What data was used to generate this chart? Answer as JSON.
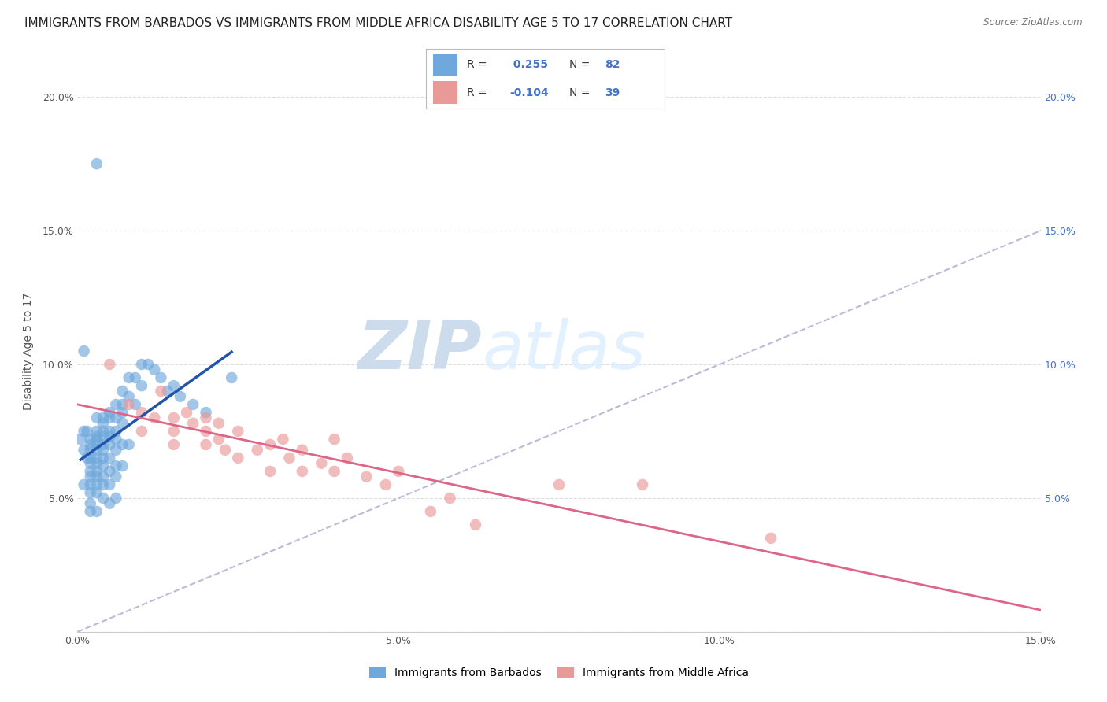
{
  "title": "IMMIGRANTS FROM BARBADOS VS IMMIGRANTS FROM MIDDLE AFRICA DISABILITY AGE 5 TO 17 CORRELATION CHART",
  "source": "Source: ZipAtlas.com",
  "ylabel": "Disability Age 5 to 17",
  "xlim": [
    0.0,
    0.15
  ],
  "ylim": [
    0.0,
    0.21
  ],
  "background_color": "#ffffff",
  "watermark_zip": "ZIP",
  "watermark_atlas": "atlas",
  "watermark_color": "#ccdcec",
  "barbados_color": "#6fa8dc",
  "middle_africa_color": "#ea9999",
  "barbados_R": 0.255,
  "barbados_N": 82,
  "middle_africa_R": -0.104,
  "middle_africa_N": 39,
  "barbados_line_color": "#2255aa",
  "middle_africa_line_color": "#dd6688",
  "diagonal_line_color": "#aaaacc",
  "grid_color": "#dddddd",
  "title_fontsize": 11,
  "axis_label_fontsize": 10,
  "tick_fontsize": 9,
  "legend_label_barbados": "Immigrants from Barbados",
  "legend_label_middle_africa": "Immigrants from Middle Africa",
  "barbados_x": [
    0.0005,
    0.001,
    0.001,
    0.001,
    0.001,
    0.0015,
    0.0015,
    0.002,
    0.002,
    0.002,
    0.002,
    0.002,
    0.002,
    0.002,
    0.002,
    0.002,
    0.002,
    0.002,
    0.003,
    0.003,
    0.003,
    0.003,
    0.003,
    0.003,
    0.003,
    0.003,
    0.003,
    0.003,
    0.003,
    0.003,
    0.003,
    0.003,
    0.004,
    0.004,
    0.004,
    0.004,
    0.004,
    0.004,
    0.004,
    0.004,
    0.004,
    0.004,
    0.004,
    0.005,
    0.005,
    0.005,
    0.005,
    0.005,
    0.005,
    0.005,
    0.005,
    0.005,
    0.006,
    0.006,
    0.006,
    0.006,
    0.006,
    0.006,
    0.006,
    0.006,
    0.007,
    0.007,
    0.007,
    0.007,
    0.007,
    0.007,
    0.008,
    0.008,
    0.008,
    0.009,
    0.009,
    0.01,
    0.01,
    0.011,
    0.012,
    0.013,
    0.014,
    0.015,
    0.016,
    0.018,
    0.02,
    0.024
  ],
  "barbados_y": [
    0.072,
    0.105,
    0.075,
    0.068,
    0.055,
    0.075,
    0.065,
    0.072,
    0.07,
    0.068,
    0.065,
    0.063,
    0.06,
    0.058,
    0.055,
    0.052,
    0.048,
    0.045,
    0.175,
    0.08,
    0.075,
    0.073,
    0.072,
    0.07,
    0.068,
    0.065,
    0.063,
    0.06,
    0.058,
    0.055,
    0.052,
    0.045,
    0.08,
    0.078,
    0.075,
    0.073,
    0.07,
    0.068,
    0.065,
    0.062,
    0.058,
    0.055,
    0.05,
    0.082,
    0.08,
    0.075,
    0.073,
    0.07,
    0.065,
    0.06,
    0.055,
    0.048,
    0.085,
    0.08,
    0.075,
    0.072,
    0.068,
    0.062,
    0.058,
    0.05,
    0.09,
    0.085,
    0.082,
    0.078,
    0.07,
    0.062,
    0.095,
    0.088,
    0.07,
    0.095,
    0.085,
    0.1,
    0.092,
    0.1,
    0.098,
    0.095,
    0.09,
    0.092,
    0.088,
    0.085,
    0.082,
    0.095
  ],
  "middle_africa_x": [
    0.005,
    0.008,
    0.01,
    0.01,
    0.012,
    0.013,
    0.015,
    0.015,
    0.015,
    0.017,
    0.018,
    0.02,
    0.02,
    0.02,
    0.022,
    0.022,
    0.023,
    0.025,
    0.025,
    0.028,
    0.03,
    0.03,
    0.032,
    0.033,
    0.035,
    0.035,
    0.038,
    0.04,
    0.04,
    0.042,
    0.045,
    0.048,
    0.05,
    0.055,
    0.058,
    0.062,
    0.075,
    0.088,
    0.108
  ],
  "middle_africa_y": [
    0.1,
    0.085,
    0.082,
    0.075,
    0.08,
    0.09,
    0.08,
    0.075,
    0.07,
    0.082,
    0.078,
    0.08,
    0.075,
    0.07,
    0.078,
    0.072,
    0.068,
    0.075,
    0.065,
    0.068,
    0.07,
    0.06,
    0.072,
    0.065,
    0.068,
    0.06,
    0.063,
    0.072,
    0.06,
    0.065,
    0.058,
    0.055,
    0.06,
    0.045,
    0.05,
    0.04,
    0.055,
    0.055,
    0.035
  ]
}
